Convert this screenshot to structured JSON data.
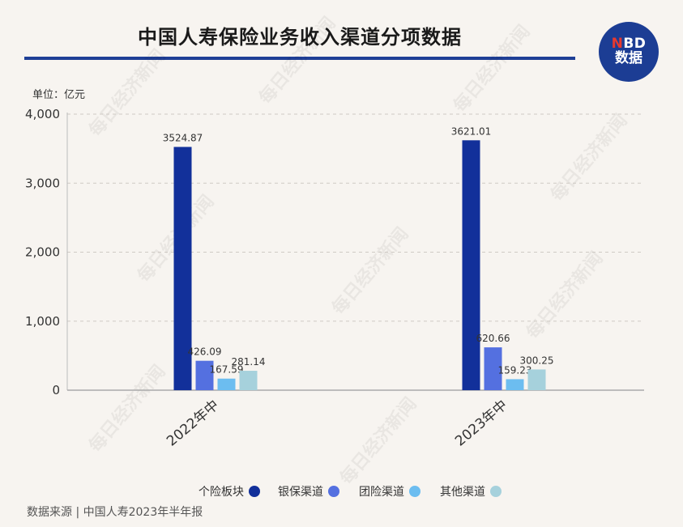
{
  "header": {
    "title": "中国人寿保险业务收入渠道分项数据",
    "logo_top": "NBD",
    "logo_bottom": "数据"
  },
  "unit_label": "单位：亿元",
  "watermark": "每日经济新闻",
  "source": "数据来源 | 中国人寿2023年半年报",
  "colors": {
    "title_rule": "#1f3f96",
    "background": "#f7f4f0"
  },
  "chart_data": {
    "type": "bar",
    "categories": [
      "2022年中",
      "2023年中"
    ],
    "series": [
      {
        "name": "个险板块",
        "color": "#12309a",
        "values": [
          3524.87,
          3621.01
        ],
        "labels": [
          "3524.87",
          "3621.01"
        ]
      },
      {
        "name": "银保渠道",
        "color": "#5470e0",
        "values": [
          426.09,
          620.66
        ],
        "labels": [
          "426.09",
          "620.66"
        ]
      },
      {
        "name": "团险渠道",
        "color": "#6cbdf0",
        "values": [
          167.59,
          159.23
        ],
        "labels": [
          "167.59",
          "159.23"
        ]
      },
      {
        "name": "其他渠道",
        "color": "#a6d1dc",
        "values": [
          281.14,
          300.25
        ],
        "labels": [
          "281.14",
          "300.25"
        ]
      }
    ],
    "yticks": [
      0,
      1000,
      2000,
      3000,
      4000
    ],
    "ytick_labels": [
      "0",
      "1,000",
      "2,000",
      "3,000",
      "4,000"
    ],
    "ylim": [
      0,
      4000
    ],
    "grid": true,
    "legend_position": "bottom-center"
  }
}
